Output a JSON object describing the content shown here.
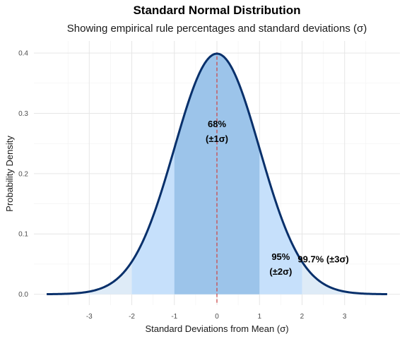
{
  "chart_data": {
    "type": "area",
    "title": "Standard Normal Distribution",
    "subtitle": "Showing empirical rule percentages and standard deviations (σ)",
    "xlabel": "Standard Deviations from Mean (σ)",
    "ylabel": "Probability Density",
    "xlim": [
      -4,
      4
    ],
    "ylim": [
      0,
      0.4
    ],
    "x_ticks": [
      -3,
      -2,
      -1,
      0,
      1,
      2,
      3
    ],
    "y_ticks": [
      0.0,
      0.1,
      0.2,
      0.3,
      0.4
    ],
    "x_tick_labels": [
      "-3",
      "-2",
      "-1",
      "0",
      "1",
      "2",
      "3"
    ],
    "y_tick_labels": [
      "0.0",
      "0.1",
      "0.2",
      "0.3",
      "0.4"
    ],
    "curve": {
      "x": [
        -4.0,
        -3.75,
        -3.5,
        -3.25,
        -3.0,
        -2.75,
        -2.5,
        -2.25,
        -2.0,
        -1.75,
        -1.5,
        -1.25,
        -1.0,
        -0.75,
        -0.5,
        -0.25,
        0.0,
        0.25,
        0.5,
        0.75,
        1.0,
        1.25,
        1.5,
        1.75,
        2.0,
        2.25,
        2.5,
        2.75,
        3.0,
        3.25,
        3.5,
        3.75,
        4.0
      ],
      "y": [
        0.0001,
        0.0004,
        0.0009,
        0.002,
        0.0044,
        0.0091,
        0.0175,
        0.0317,
        0.054,
        0.0863,
        0.1295,
        0.1826,
        0.242,
        0.3011,
        0.3521,
        0.3867,
        0.3989,
        0.3867,
        0.3521,
        0.3011,
        0.242,
        0.1826,
        0.1295,
        0.0863,
        0.054,
        0.0317,
        0.0175,
        0.0091,
        0.0044,
        0.002,
        0.0009,
        0.0004,
        0.0001
      ],
      "color": "#08306b"
    },
    "bands": [
      {
        "from": -3,
        "to": 3,
        "color": "#deebf7"
      },
      {
        "from": -2,
        "to": 2,
        "color": "#c6e0fb"
      },
      {
        "from": -1,
        "to": 1,
        "color": "#9cc4ea"
      }
    ],
    "mean_line": {
      "x": 0,
      "color": "#cb4b4b"
    },
    "annotations": [
      {
        "lines": [
          "68%",
          "(±1σ)"
        ],
        "x": 0,
        "y": 0.27
      },
      {
        "lines": [
          "95%",
          "(±2σ)"
        ],
        "x": 1.5,
        "y": 0.05
      },
      {
        "lines": [
          "99.7% (±3σ)"
        ],
        "x": 2.5,
        "y": 0.058
      }
    ],
    "grid": true
  }
}
